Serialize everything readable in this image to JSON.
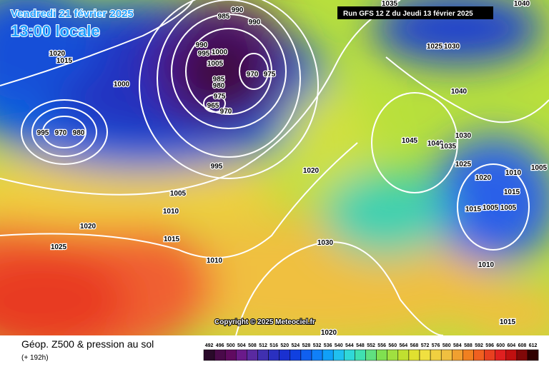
{
  "header": {
    "date": "Vendredi 21 février 2025",
    "time": "13:00 locale",
    "run": "Run GFS 12 Z du Jeudi 13 février 2025"
  },
  "copyright": "Copyright © 2025 Meteociel.fr",
  "footer": {
    "title": "Géop. Z500 & pression au sol",
    "lead": "(+ 192h)"
  },
  "colorbar": {
    "labels": [
      492,
      496,
      500,
      504,
      508,
      512,
      516,
      520,
      524,
      528,
      532,
      536,
      540,
      544,
      548,
      552,
      556,
      560,
      564,
      568,
      572,
      576,
      580,
      584,
      588,
      592,
      596,
      600,
      604,
      608,
      612
    ]
  },
  "isobar_labels": [
    985,
    990,
    990,
    1035,
    1040,
    1025,
    1030,
    1020,
    1015,
    1000,
    990,
    995,
    1000,
    1005,
    970,
    975,
    985,
    980,
    975,
    965,
    970,
    995,
    970,
    980,
    1040,
    1045,
    1040,
    1035,
    1030,
    1025,
    1020,
    1010,
    1005,
    1015,
    1015,
    1005,
    1005,
    995,
    1005,
    1010,
    1020,
    1015,
    1025,
    1010,
    1030,
    1020,
    1010,
    1015,
    1020
  ]
}
